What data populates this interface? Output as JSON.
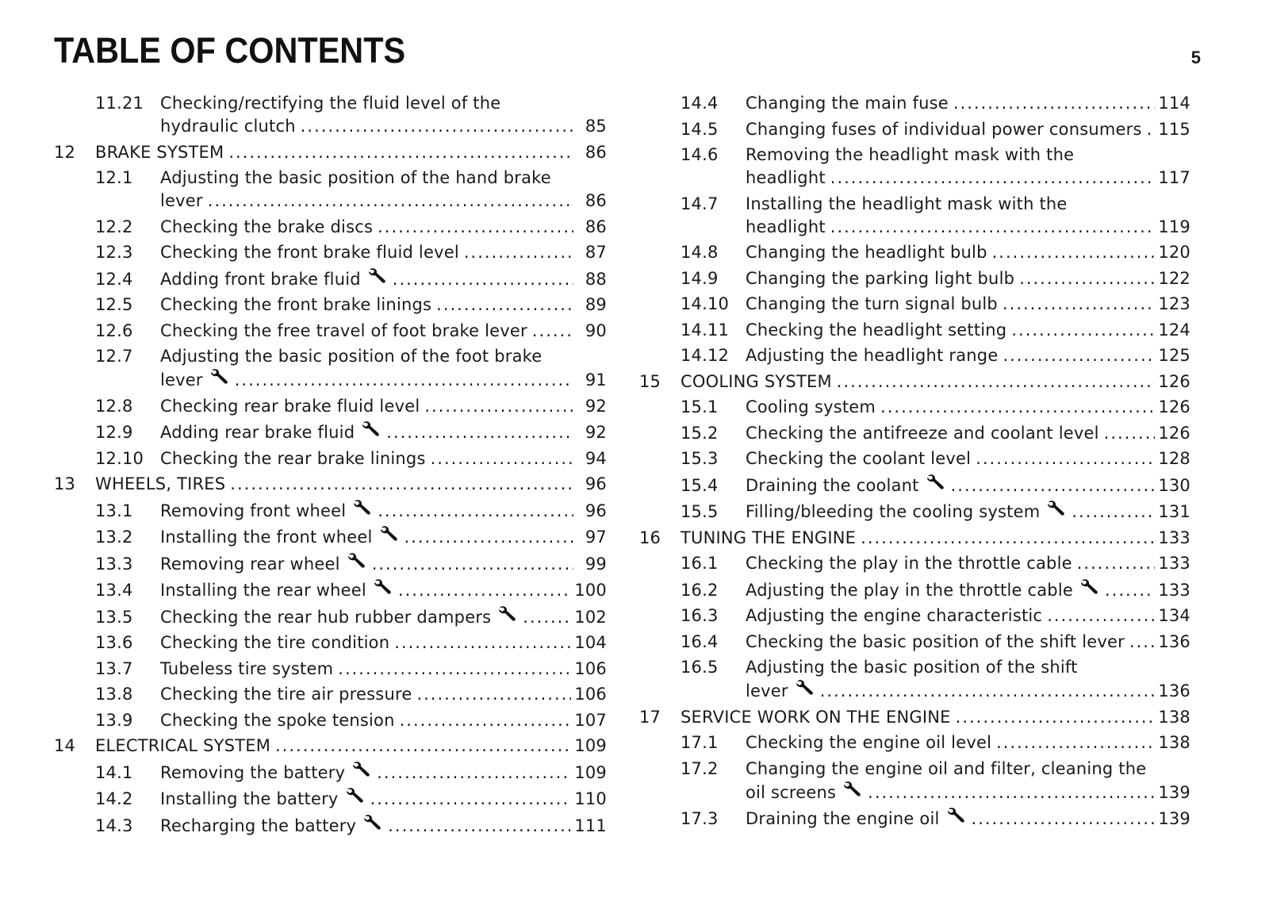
{
  "header": {
    "title": "TABLE OF CONTENTS",
    "page_number": "5"
  },
  "icons": {
    "wrench": "wrench-icon"
  },
  "left": [
    {
      "level": "sub",
      "num": "11.21",
      "title": "Checking/rectifying the fluid level of the",
      "cont": "hydraulic clutch",
      "wrench": false,
      "page": "85"
    },
    {
      "level": "ch",
      "num": "12",
      "title": "BRAKE SYSTEM",
      "wrench": false,
      "page": "86"
    },
    {
      "level": "sub",
      "num": "12.1",
      "title": "Adjusting the basic position of the hand brake",
      "cont": "lever",
      "wrench": false,
      "page": "86"
    },
    {
      "level": "sub",
      "num": "12.2",
      "title": "Checking the brake discs",
      "wrench": false,
      "page": "86"
    },
    {
      "level": "sub",
      "num": "12.3",
      "title": "Checking the front brake fluid level",
      "wrench": false,
      "page": "87"
    },
    {
      "level": "sub",
      "num": "12.4",
      "title": "Adding front brake fluid",
      "wrench": true,
      "page": "88"
    },
    {
      "level": "sub",
      "num": "12.5",
      "title": "Checking the front brake linings",
      "wrench": false,
      "page": "89"
    },
    {
      "level": "sub",
      "num": "12.6",
      "title": "Checking the free travel of foot brake lever",
      "wrench": false,
      "page": "90"
    },
    {
      "level": "sub",
      "num": "12.7",
      "title": "Adjusting the basic position of the foot brake",
      "cont": "lever",
      "wrench": true,
      "page": "91"
    },
    {
      "level": "sub",
      "num": "12.8",
      "title": "Checking rear brake fluid level",
      "wrench": false,
      "page": "92"
    },
    {
      "level": "sub",
      "num": "12.9",
      "title": "Adding rear brake fluid",
      "wrench": true,
      "page": "92"
    },
    {
      "level": "sub",
      "num": "12.10",
      "title": "Checking the rear brake linings",
      "wrench": false,
      "page": "94"
    },
    {
      "level": "ch",
      "num": "13",
      "title": "WHEELS, TIRES",
      "wrench": false,
      "page": "96"
    },
    {
      "level": "sub",
      "num": "13.1",
      "title": "Removing front wheel",
      "wrench": true,
      "page": "96"
    },
    {
      "level": "sub",
      "num": "13.2",
      "title": "Installing the front wheel",
      "wrench": true,
      "page": "97"
    },
    {
      "level": "sub",
      "num": "13.3",
      "title": "Removing rear wheel",
      "wrench": true,
      "page": "99"
    },
    {
      "level": "sub",
      "num": "13.4",
      "title": "Installing the rear wheel",
      "wrench": true,
      "page": "100"
    },
    {
      "level": "sub",
      "num": "13.5",
      "title": "Checking the rear hub rubber dampers",
      "wrench": true,
      "page": "102"
    },
    {
      "level": "sub",
      "num": "13.6",
      "title": "Checking the tire condition",
      "wrench": false,
      "page": "104"
    },
    {
      "level": "sub",
      "num": "13.7",
      "title": "Tubeless tire system",
      "wrench": false,
      "page": "106"
    },
    {
      "level": "sub",
      "num": "13.8",
      "title": "Checking the tire air pressure",
      "wrench": false,
      "page": "106"
    },
    {
      "level": "sub",
      "num": "13.9",
      "title": "Checking the spoke tension",
      "wrench": false,
      "page": "107"
    },
    {
      "level": "ch",
      "num": "14",
      "title": "ELECTRICAL SYSTEM",
      "wrench": false,
      "page": "109"
    },
    {
      "level": "sub",
      "num": "14.1",
      "title": "Removing the battery",
      "wrench": true,
      "page": "109"
    },
    {
      "level": "sub",
      "num": "14.2",
      "title": "Installing the battery",
      "wrench": true,
      "page": "110"
    },
    {
      "level": "sub",
      "num": "14.3",
      "title": "Recharging the battery",
      "wrench": true,
      "page": "111"
    }
  ],
  "right": [
    {
      "level": "sub",
      "num": "14.4",
      "title": "Changing the main fuse",
      "wrench": false,
      "page": "114"
    },
    {
      "level": "sub",
      "num": "14.5",
      "title": "Changing fuses of individual power consumers",
      "wrench": false,
      "page": "115"
    },
    {
      "level": "sub",
      "num": "14.6",
      "title": "Removing the headlight mask with the",
      "cont": "headlight",
      "wrench": false,
      "page": "117"
    },
    {
      "level": "sub",
      "num": "14.7",
      "title": "Installing the headlight mask with the",
      "cont": "headlight",
      "wrench": false,
      "page": "119"
    },
    {
      "level": "sub",
      "num": "14.8",
      "title": "Changing the headlight bulb",
      "wrench": false,
      "page": "120"
    },
    {
      "level": "sub",
      "num": "14.9",
      "title": "Changing the parking light bulb",
      "wrench": false,
      "page": "122"
    },
    {
      "level": "sub",
      "num": "14.10",
      "title": "Changing the turn signal bulb",
      "wrench": false,
      "page": "123"
    },
    {
      "level": "sub",
      "num": "14.11",
      "title": "Checking the headlight setting",
      "wrench": false,
      "page": "124"
    },
    {
      "level": "sub",
      "num": "14.12",
      "title": "Adjusting the headlight range",
      "wrench": false,
      "page": "125"
    },
    {
      "level": "ch",
      "num": "15",
      "title": "COOLING SYSTEM",
      "wrench": false,
      "page": "126"
    },
    {
      "level": "sub",
      "num": "15.1",
      "title": "Cooling system",
      "wrench": false,
      "page": "126"
    },
    {
      "level": "sub",
      "num": "15.2",
      "title": "Checking the antifreeze and coolant level",
      "wrench": false,
      "page": "126"
    },
    {
      "level": "sub",
      "num": "15.3",
      "title": "Checking the coolant level",
      "wrench": false,
      "page": "128"
    },
    {
      "level": "sub",
      "num": "15.4",
      "title": "Draining the coolant",
      "wrench": true,
      "page": "130"
    },
    {
      "level": "sub",
      "num": "15.5",
      "title": "Filling/bleeding the cooling system",
      "wrench": true,
      "page": "131"
    },
    {
      "level": "ch",
      "num": "16",
      "title": "TUNING THE ENGINE",
      "wrench": false,
      "page": "133"
    },
    {
      "level": "sub",
      "num": "16.1",
      "title": "Checking the play in the throttle cable",
      "wrench": false,
      "page": "133"
    },
    {
      "level": "sub",
      "num": "16.2",
      "title": "Adjusting the play in the throttle cable",
      "wrench": true,
      "page": "133"
    },
    {
      "level": "sub",
      "num": "16.3",
      "title": "Adjusting the engine characteristic",
      "wrench": false,
      "page": "134"
    },
    {
      "level": "sub",
      "num": "16.4",
      "title": "Checking the basic position of the shift lever",
      "wrench": false,
      "page": "136"
    },
    {
      "level": "sub",
      "num": "16.5",
      "title": "Adjusting the basic position of the shift",
      "cont": "lever",
      "wrench": true,
      "page": "136"
    },
    {
      "level": "ch",
      "num": "17",
      "title": "SERVICE WORK ON THE ENGINE",
      "wrench": false,
      "page": "138"
    },
    {
      "level": "sub",
      "num": "17.1",
      "title": "Checking the engine oil level",
      "wrench": false,
      "page": "138"
    },
    {
      "level": "sub",
      "num": "17.2",
      "title": "Changing the engine oil and filter, cleaning the",
      "cont": "oil screens",
      "wrench": true,
      "page": "139"
    },
    {
      "level": "sub",
      "num": "17.3",
      "title": "Draining the engine oil",
      "wrench": true,
      "page": "139"
    }
  ]
}
